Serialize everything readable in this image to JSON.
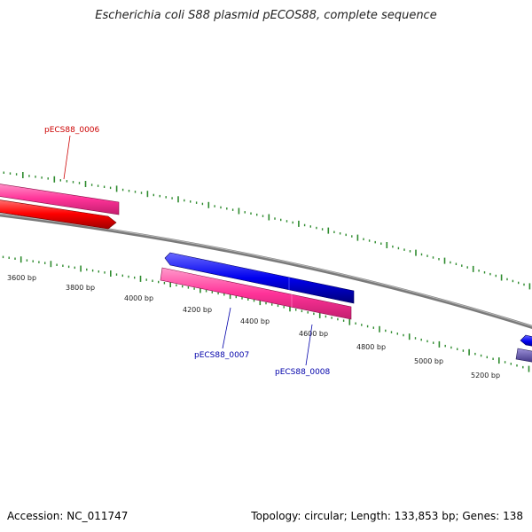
{
  "title": "Escherichia coli S88 plasmid pECOS88, complete sequence",
  "footer": {
    "accession": "Accession: NC_011747",
    "summary": "Topology: circular; Length: 133,853 bp; Genes: 138"
  },
  "bp_labels": [
    "3600 bp",
    "3800 bp",
    "4000 bp",
    "4200 bp",
    "4400 bp",
    "4600 bp",
    "4800 bp",
    "5000 bp",
    "5200 bp"
  ],
  "genes": [
    {
      "label": "pECS88_0006",
      "color": "#cc0000"
    },
    {
      "label": "pECS88_0007",
      "color": "#0000aa"
    },
    {
      "label": "pECS88_0008",
      "color": "#0000aa"
    }
  ],
  "colors": {
    "backbone": "#808080",
    "tick": "#2e8b2e",
    "cds_red": "#ff0000",
    "cds_blue": "#0000ee",
    "gene_pink": "#ff3399",
    "cds_purple": "#5a4ea0"
  }
}
